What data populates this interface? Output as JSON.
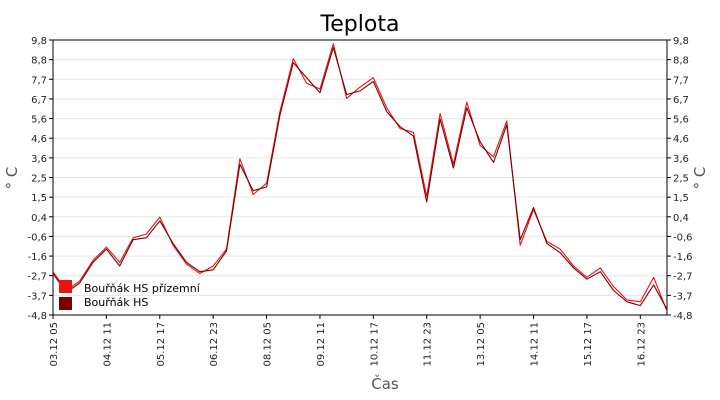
{
  "chart_data": {
    "type": "line",
    "title": "Teplota",
    "xlabel": "Čas",
    "ylabel": "° C",
    "ylim": [
      -4.8,
      9.8
    ],
    "y_ticks": [
      "9,8",
      "8,8",
      "7,7",
      "6,7",
      "5,6",
      "4,6",
      "3,6",
      "2,5",
      "1,5",
      "0,4",
      "-0,6",
      "-1,6",
      "-2,7",
      "-3,7",
      "-4,8"
    ],
    "x_ticks": [
      "03.12 05",
      "04.12 11",
      "05.12 17",
      "06.12 23",
      "08.12 05",
      "09.12 11",
      "10.12 17",
      "11.12 23",
      "13.12 05",
      "14.12 11",
      "15.12 17",
      "16.12 23"
    ],
    "grid": true,
    "legend_position": "bottom-left",
    "x": [
      0,
      0.25,
      0.5,
      0.75,
      1,
      1.25,
      1.5,
      1.75,
      2,
      2.25,
      2.5,
      2.75,
      3,
      3.25,
      3.5,
      3.75,
      4,
      4.25,
      4.5,
      4.75,
      5,
      5.25,
      5.5,
      5.75,
      6,
      6.25,
      6.5,
      6.75,
      7,
      7.25,
      7.5,
      7.75,
      8,
      8.25,
      8.5,
      8.75,
      9,
      9.25,
      9.5,
      9.75,
      10,
      10.25,
      10.5,
      10.75,
      11,
      11.25,
      11.5
    ],
    "series": [
      {
        "name": "Bouřňák HS přízemní",
        "color": "#ee1111",
        "values": [
          -2.5,
          -3.5,
          -3.0,
          -1.9,
          -1.2,
          -2.0,
          -0.7,
          -0.5,
          0.4,
          -1.1,
          -2.1,
          -2.6,
          -2.2,
          -1.3,
          3.5,
          1.6,
          2.2,
          6.0,
          8.8,
          7.5,
          7.2,
          9.6,
          6.7,
          7.3,
          7.8,
          6.2,
          5.1,
          4.9,
          1.5,
          5.9,
          3.2,
          6.5,
          4.2,
          3.6,
          5.5,
          -1.1,
          0.8,
          -0.9,
          -1.3,
          -2.2,
          -2.8,
          -2.3,
          -3.3,
          -4.0,
          -4.1,
          -2.8,
          -4.6
        ]
      },
      {
        "name": "Bouřňák HS",
        "color": "#7a0000",
        "values": [
          -2.6,
          -3.6,
          -3.1,
          -2.0,
          -1.3,
          -2.2,
          -0.8,
          -0.7,
          0.2,
          -1.0,
          -2.0,
          -2.5,
          -2.4,
          -1.4,
          3.2,
          1.8,
          2.0,
          5.8,
          8.6,
          7.8,
          7.0,
          9.4,
          6.9,
          7.1,
          7.6,
          6.0,
          5.2,
          4.7,
          1.2,
          5.6,
          3.0,
          6.2,
          4.4,
          3.3,
          5.3,
          -0.8,
          0.9,
          -1.0,
          -1.5,
          -2.3,
          -2.9,
          -2.5,
          -3.5,
          -4.1,
          -4.3,
          -3.2,
          -4.5
        ]
      }
    ]
  }
}
